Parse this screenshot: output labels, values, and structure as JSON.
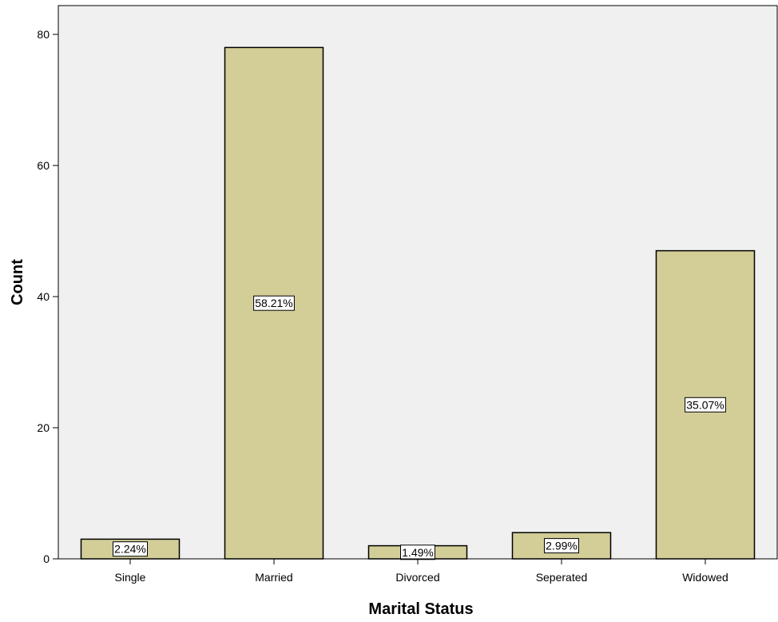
{
  "chart_data": {
    "type": "bar",
    "title": "",
    "xlabel": "Marital Status",
    "ylabel": "Count",
    "categories": [
      "Single",
      "Married",
      "Divorced",
      "Seperated",
      "Widowed"
    ],
    "values": [
      3,
      78,
      2,
      4,
      47
    ],
    "data_labels": [
      "2.24%",
      "58.21%",
      "1.49%",
      "2.99%",
      "35.07%"
    ],
    "ylim": [
      0,
      85
    ],
    "yticks": [
      0,
      20,
      40,
      60,
      80
    ],
    "grid": false,
    "legend": "none",
    "colors": {
      "bar_fill": "#d3ce97",
      "bar_stroke": "#000000",
      "plot_background": "#f0f0f0",
      "label_box_fill": "#ffffff"
    }
  }
}
